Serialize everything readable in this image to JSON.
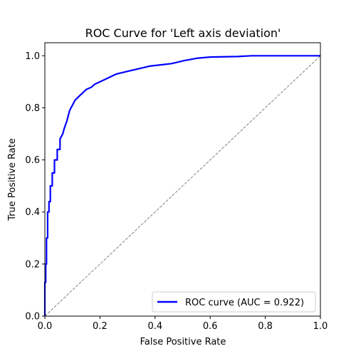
{
  "chart_data": {
    "type": "line",
    "title": "ROC Curve for 'Left axis deviation'",
    "xlabel": "False Positive Rate",
    "ylabel": "True Positive Rate",
    "xlim": [
      0.0,
      1.0
    ],
    "ylim": [
      0.0,
      1.05
    ],
    "xticks": [
      "0.0",
      "0.2",
      "0.4",
      "0.6",
      "0.8",
      "1.0"
    ],
    "yticks": [
      "0.0",
      "0.2",
      "0.4",
      "0.6",
      "0.8",
      "1.0"
    ],
    "grid": false,
    "legend_position": "bottom-right",
    "series": [
      {
        "name": "ROC curve (AUC = 0.922)",
        "color": "#0000ff",
        "style": "solid",
        "x": [
          0.0,
          0.0,
          0.003,
          0.003,
          0.006,
          0.006,
          0.01,
          0.01,
          0.015,
          0.015,
          0.02,
          0.02,
          0.027,
          0.027,
          0.035,
          0.035,
          0.045,
          0.045,
          0.055,
          0.055,
          0.065,
          0.07,
          0.08,
          0.09,
          0.1,
          0.11,
          0.12,
          0.13,
          0.14,
          0.15,
          0.16,
          0.17,
          0.18,
          0.2,
          0.22,
          0.24,
          0.26,
          0.3,
          0.34,
          0.38,
          0.42,
          0.46,
          0.5,
          0.55,
          0.6,
          0.7,
          0.75,
          1.0
        ],
        "y": [
          0.0,
          0.13,
          0.13,
          0.2,
          0.2,
          0.3,
          0.3,
          0.4,
          0.4,
          0.44,
          0.44,
          0.5,
          0.5,
          0.55,
          0.55,
          0.6,
          0.6,
          0.64,
          0.64,
          0.68,
          0.7,
          0.72,
          0.75,
          0.79,
          0.81,
          0.83,
          0.84,
          0.85,
          0.86,
          0.87,
          0.875,
          0.88,
          0.89,
          0.9,
          0.91,
          0.92,
          0.93,
          0.94,
          0.95,
          0.96,
          0.965,
          0.97,
          0.98,
          0.99,
          0.995,
          0.997,
          1.0,
          1.0
        ]
      },
      {
        "name": "",
        "color": "#808080",
        "style": "dashed",
        "x": [
          0.0,
          1.0
        ],
        "y": [
          0.0,
          1.0
        ]
      }
    ]
  }
}
